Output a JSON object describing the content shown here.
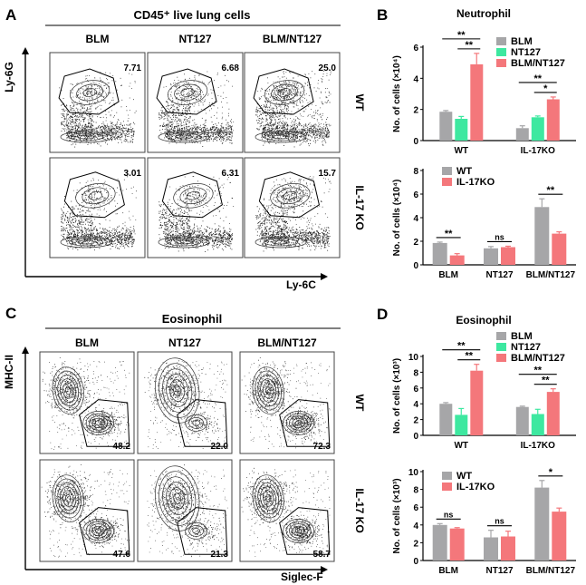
{
  "flow_a": {
    "letter": "A",
    "title": "CD45⁺ live lung cells",
    "columns": [
      "BLM",
      "NT127",
      "BLM/NT127"
    ],
    "rows": [
      "WT",
      "IL-17 KO"
    ],
    "gates": [
      [
        "7.71",
        "6.68",
        "25.0"
      ],
      [
        "3.01",
        "6.31",
        "15.7"
      ]
    ],
    "x_label": "Ly-6C",
    "y_label": "Ly-6G"
  },
  "flow_c": {
    "letter": "C",
    "title": "Eosinophil",
    "columns": [
      "BLM",
      "NT127",
      "BLM/NT127"
    ],
    "rows": [
      "WT",
      "IL-17 KO"
    ],
    "gates": [
      [
        "48.2",
        "22.0",
        "72.3"
      ],
      [
        "47.6",
        "21.3",
        "58.7"
      ]
    ],
    "x_label": "Siglec-F",
    "y_label": "MHC-II"
  },
  "palette": {
    "blm": "#a6a6a8",
    "nt127": "#3de8a0",
    "combo": "#f4777b",
    "wt": "#a6a6a8",
    "ko": "#f4777b",
    "text": "#000000"
  },
  "chart_data": [
    {
      "id": "B-top",
      "letter": "B",
      "type": "bar",
      "title": "Neutrophil",
      "ylabel": "No. of cells (×10⁴)",
      "categories": [
        "WT",
        "IL-17KO"
      ],
      "ylim": [
        0,
        6
      ],
      "yticks": [
        "0",
        "2",
        "4",
        "6"
      ],
      "series": [
        {
          "name": "BLM",
          "values": [
            1.85,
            0.8
          ],
          "errors": [
            0.08,
            0.15
          ]
        },
        {
          "name": "NT127",
          "values": [
            1.4,
            1.5
          ],
          "errors": [
            0.15,
            0.08
          ]
        },
        {
          "name": "BLM/NT127",
          "values": [
            4.9,
            2.65
          ],
          "errors": [
            0.7,
            0.15
          ]
        }
      ],
      "significance": [
        "**",
        "**",
        "**",
        "*"
      ]
    },
    {
      "id": "B-bottom",
      "type": "bar",
      "ylabel": "No. of cells (×10⁴)",
      "categories": [
        "BLM",
        "NT127",
        "BLM/NT127"
      ],
      "ylim": [
        0,
        8
      ],
      "yticks": [
        "0",
        "2",
        "4",
        "6",
        "8"
      ],
      "series": [
        {
          "name": "WT",
          "values": [
            1.85,
            1.4,
            4.9
          ],
          "errors": [
            0.08,
            0.15,
            0.7
          ]
        },
        {
          "name": "IL-17KO",
          "values": [
            0.8,
            1.5,
            2.65
          ],
          "errors": [
            0.15,
            0.08,
            0.15
          ]
        }
      ],
      "significance": [
        "**",
        "ns",
        "**"
      ]
    },
    {
      "id": "D-top",
      "letter": "D",
      "type": "bar",
      "title": "Eosinophil",
      "ylabel": "No. of cells (×10³)",
      "categories": [
        "WT",
        "IL-17KO"
      ],
      "ylim": [
        0,
        10
      ],
      "yticks": [
        "0",
        "2",
        "4",
        "6",
        "8",
        "10"
      ],
      "series": [
        {
          "name": "BLM",
          "values": [
            4.0,
            3.6
          ],
          "errors": [
            0.15,
            0.1
          ]
        },
        {
          "name": "NT127",
          "values": [
            2.6,
            2.7
          ],
          "errors": [
            0.8,
            0.6
          ]
        },
        {
          "name": "BLM/NT127",
          "values": [
            8.2,
            5.5
          ],
          "errors": [
            0.8,
            0.4
          ]
        }
      ],
      "significance": [
        "**",
        "**",
        "**",
        "**"
      ]
    },
    {
      "id": "D-bottom",
      "type": "bar",
      "ylabel": "No. of cells (×10³)",
      "categories": [
        "BLM",
        "NT127",
        "BLM/NT127"
      ],
      "ylim": [
        0,
        10
      ],
      "yticks": [
        "0",
        "2",
        "4",
        "6",
        "8",
        "10"
      ],
      "series": [
        {
          "name": "WT",
          "values": [
            4.0,
            2.6,
            8.2
          ],
          "errors": [
            0.15,
            0.8,
            0.8
          ]
        },
        {
          "name": "IL-17KO",
          "values": [
            3.6,
            2.7,
            5.5
          ],
          "errors": [
            0.1,
            0.6,
            0.4
          ]
        }
      ],
      "significance": [
        "ns",
        "ns",
        "*"
      ]
    }
  ]
}
